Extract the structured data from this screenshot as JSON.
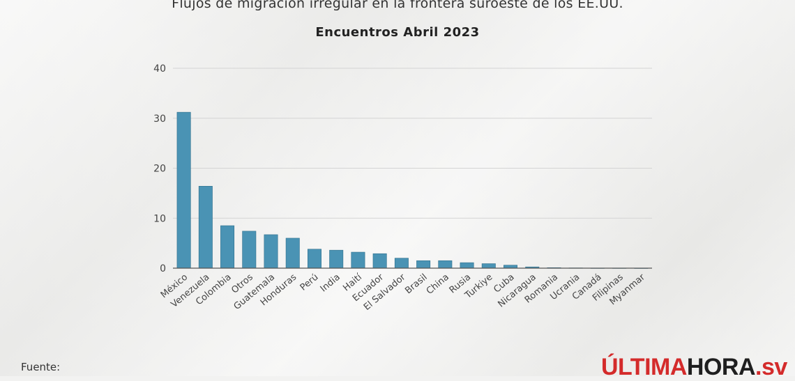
{
  "title": "Flujos de migración irregular en la frontera suroeste de los EE.UU.",
  "subtitle": "Encuentros Abril 2023",
  "footer": {
    "source_label": "Fuente:"
  },
  "logo": {
    "part1": "ÚLTIMA",
    "part2": "HORA",
    "part3": ".sv"
  },
  "colors": {
    "bar": "#4a93b4",
    "bar_edge": "#2f6f8c",
    "grid": "#d4d4d4",
    "axis": "#555555"
  },
  "chart_data": {
    "type": "bar",
    "title": "Flujos de migración irregular en la frontera suroeste de los EE.UU.",
    "subtitle": "Encuentros Abril 2023",
    "categories": [
      "México",
      "Venezuela",
      "Colombia",
      "Otros",
      "Guatemala",
      "Honduras",
      "Perú",
      "India",
      "Haití",
      "Ecuador",
      "El Salvador",
      "Brasil",
      "China",
      "Rusia",
      "Turkiye",
      "Cuba",
      "Nicaragua",
      "Romania",
      "Ucrania",
      "Canadá",
      "Filipinas",
      "Myanmar"
    ],
    "values": [
      31.2,
      16.4,
      8.5,
      7.4,
      6.7,
      6.0,
      3.8,
      3.6,
      3.2,
      2.9,
      2.0,
      1.5,
      1.5,
      1.1,
      0.9,
      0.6,
      0.25,
      0.1,
      0.05,
      0.03,
      0.03,
      0.02
    ],
    "ylim": [
      0,
      40
    ],
    "yticks": [
      0,
      10,
      20,
      30,
      40
    ],
    "xlabel": "",
    "ylabel": "",
    "grid": true,
    "legend": "none"
  }
}
